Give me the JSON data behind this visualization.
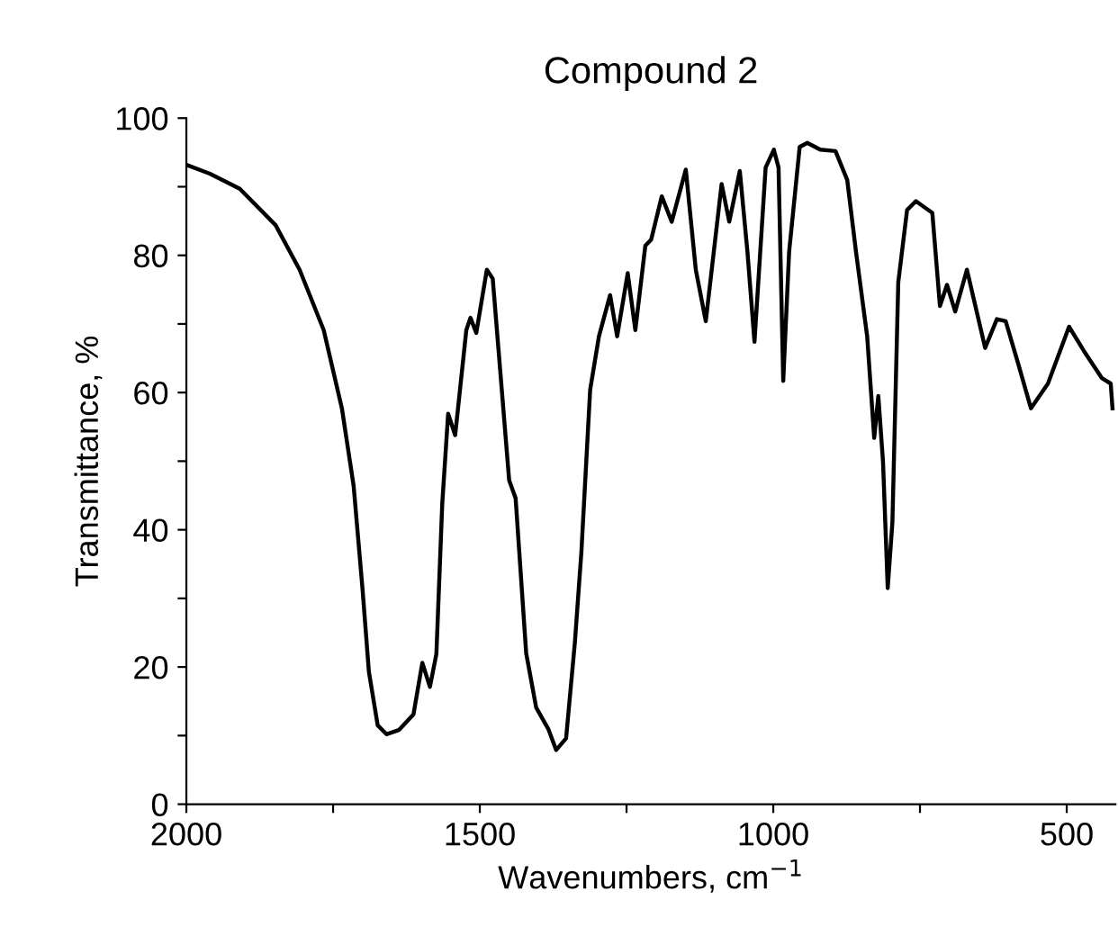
{
  "chart_data": {
    "type": "line",
    "title": "Compound 2",
    "xlabel": "Wavenumbers, cm$^{−1}$",
    "ylabel": "Transmittance, %",
    "xlim": [
      2000,
      417
    ],
    "ylim": [
      0,
      100
    ],
    "xticks": [
      2000,
      {
        "value": 1750,
        "label": null
      },
      1500,
      {
        "value": 1250,
        "label": null
      },
      1000,
      {
        "value": 750,
        "label": null
      },
      500
    ],
    "yticks": [
      0,
      {
        "value": 10,
        "label": null
      },
      20,
      {
        "value": 30,
        "label": null
      },
      40,
      {
        "value": 50,
        "label": null
      },
      60,
      {
        "value": 70,
        "label": null
      },
      80,
      {
        "value": 90,
        "label": null
      },
      100
    ],
    "grid": false,
    "legend": false,
    "marker": "none",
    "line_style": "solid",
    "series": [
      {
        "color": "#000000",
        "x": [
          2000,
          1960,
          1909,
          1848,
          1807,
          1766,
          1735,
          1715,
          1700,
          1689,
          1674,
          1659,
          1638,
          1613,
          1598,
          1585,
          1574,
          1564,
          1554,
          1542,
          1523,
          1516,
          1506,
          1488,
          1478,
          1450,
          1439,
          1421,
          1404,
          1383,
          1370,
          1353,
          1338,
          1327,
          1312,
          1297,
          1278,
          1266,
          1248,
          1235,
          1218,
          1208,
          1190,
          1173,
          1149,
          1132,
          1115,
          1088,
          1075,
          1057,
          1044,
          1032,
          1013,
          999,
          991,
          983,
          973,
          955,
          942,
          920,
          894,
          874,
          859,
          840,
          828,
          821,
          813,
          805,
          797,
          787,
          772,
          757,
          729,
          716,
          704,
          690,
          670,
          639,
          619,
          604,
          583,
          561,
          532,
          496,
          471,
          440,
          425,
          422
        ],
        "values": [
          93.2,
          91.9,
          89.7,
          84.4,
          77.9,
          69.1,
          57.7,
          46.4,
          31.5,
          19.3,
          11.5,
          10.2,
          10.8,
          13.1,
          20.6,
          17.1,
          21.9,
          43.8,
          56.9,
          53.8,
          69.1,
          70.9,
          68.7,
          77.9,
          76.6,
          47.2,
          44.6,
          22.0,
          14.1,
          10.9,
          7.9,
          9.6,
          23.6,
          36.7,
          60.4,
          68.2,
          74.2,
          68.2,
          77.4,
          69.1,
          81.4,
          82.3,
          88.6,
          84.9,
          92.5,
          77.9,
          70.4,
          90.4,
          84.9,
          92.3,
          80.5,
          67.4,
          92.8,
          95.4,
          92.8,
          61.7,
          80.5,
          95.8,
          96.4,
          95.4,
          95.2,
          91.0,
          80.5,
          68.2,
          53.4,
          59.5,
          49.9,
          31.5,
          41.1,
          76.1,
          86.6,
          87.9,
          86.2,
          72.6,
          75.7,
          71.8,
          77.9,
          66.5,
          70.7,
          70.4,
          64.3,
          57.7,
          61.3,
          69.6,
          66.1,
          62.1,
          61.3,
          57.7
        ]
      }
    ]
  }
}
